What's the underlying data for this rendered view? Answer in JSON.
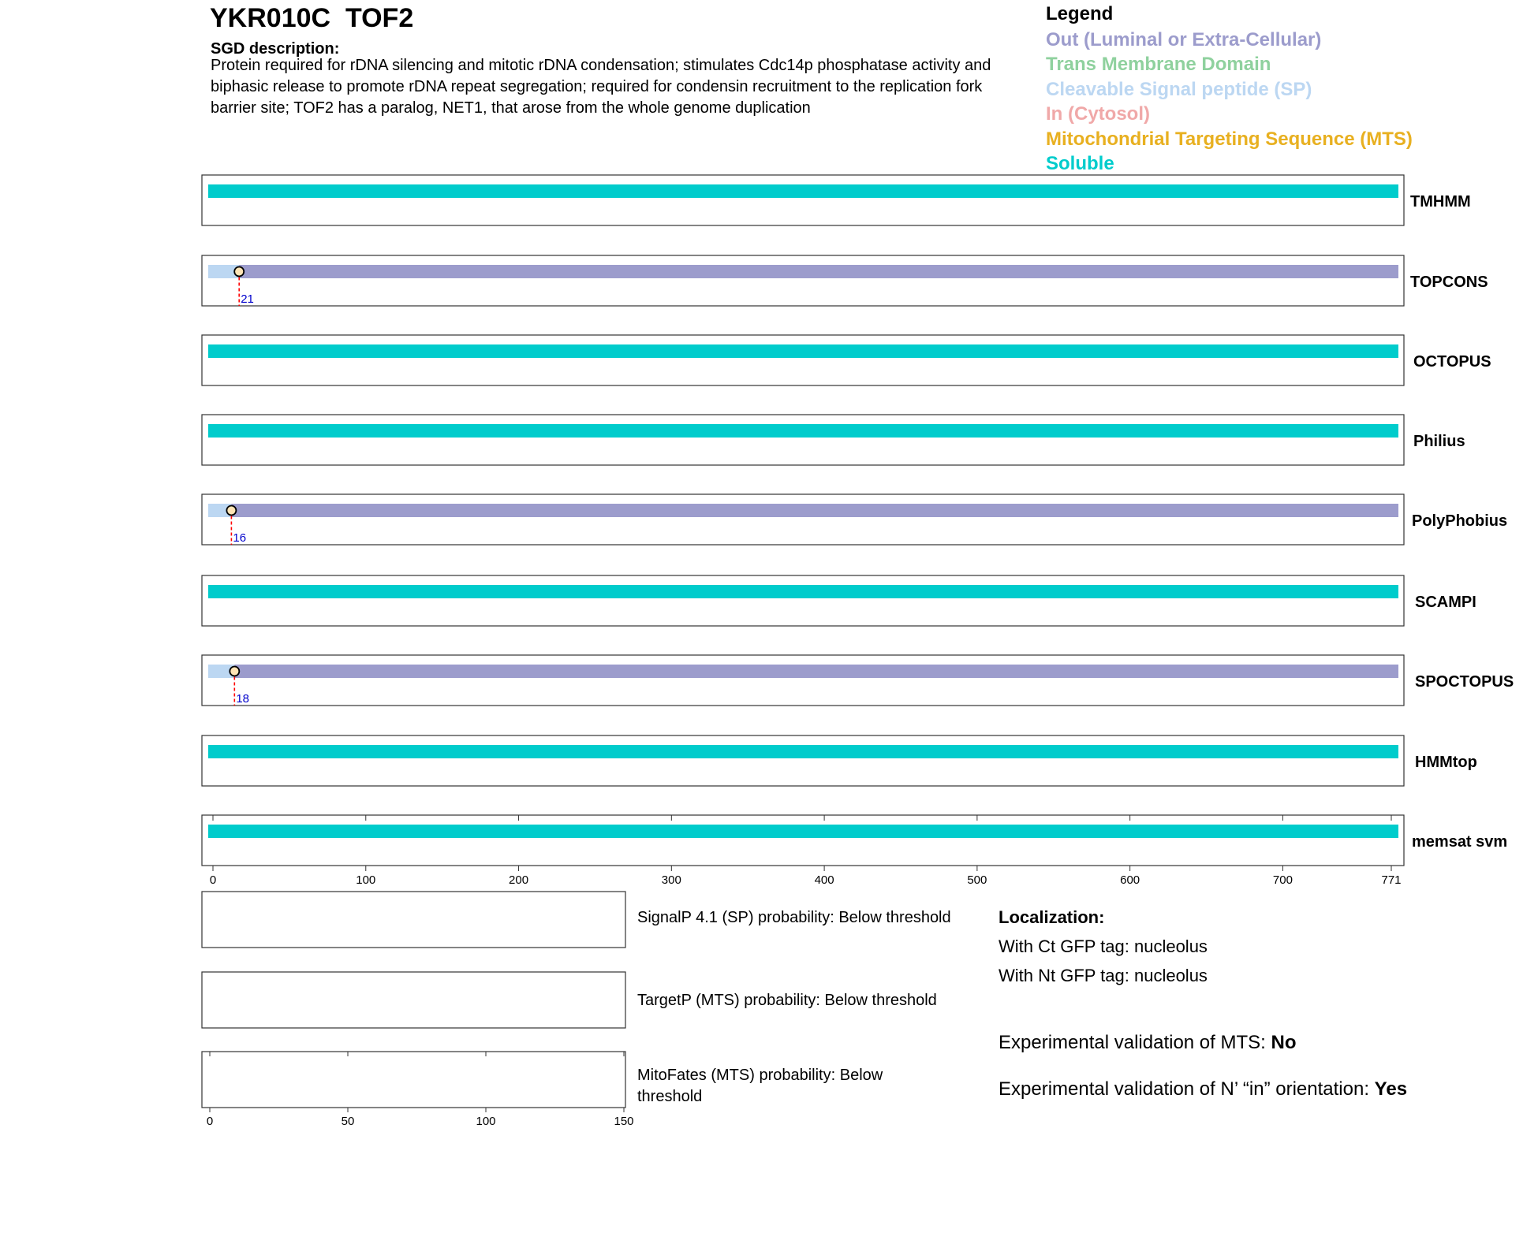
{
  "header": {
    "title": "YKR010C  TOF2",
    "desc_heading": "SGD description:",
    "desc_text": "Protein required for rDNA silencing and mitotic rDNA condensation; stimulates Cdc14p phosphatase activity and biphasic release to promote rDNA repeat segregation; required for condensin recruitment to the replication fork barrier site; TOF2 has a paralog, NET1, that arose from the whole genome duplication"
  },
  "legend": {
    "title": "Legend",
    "items": [
      {
        "label": "Out (Luminal or Extra-Cellular)",
        "color": "#9c9ccc"
      },
      {
        "label": "Trans Membrane Domain",
        "color": "#8fd19e"
      },
      {
        "label": "Cleavable Signal peptide (SP)",
        "color": "#bcd7f2"
      },
      {
        "label": "In (Cytosol)",
        "color": "#f0a8a8"
      },
      {
        "label": "Mitochondrial Targeting Sequence (MTS)",
        "color": "#e8b020"
      },
      {
        "label": "Soluble",
        "color": "#00cccc"
      }
    ]
  },
  "chart_data": {
    "type": "topology-tracks",
    "protein_length": 771,
    "x_ticks": [
      0,
      100,
      200,
      300,
      400,
      500,
      600,
      700,
      771
    ],
    "tracks": [
      {
        "name": "TMHMM",
        "segments": [
          {
            "start": 1,
            "end": 771,
            "type": "Soluble"
          }
        ]
      },
      {
        "name": "TOPCONS",
        "segments": [
          {
            "start": 1,
            "end": 21,
            "type": "Cleavable Signal peptide (SP)"
          },
          {
            "start": 21,
            "end": 771,
            "type": "Out (Luminal or Extra-Cellular)"
          }
        ],
        "cleavage_site": "21"
      },
      {
        "name": "OCTOPUS",
        "segments": [
          {
            "start": 1,
            "end": 771,
            "type": "Soluble"
          }
        ]
      },
      {
        "name": "Philius",
        "segments": [
          {
            "start": 1,
            "end": 771,
            "type": "Soluble"
          }
        ]
      },
      {
        "name": "PolyPhobius",
        "segments": [
          {
            "start": 1,
            "end": 16,
            "type": "Cleavable Signal peptide (SP)"
          },
          {
            "start": 16,
            "end": 771,
            "type": "Out (Luminal or Extra-Cellular)"
          }
        ],
        "cleavage_site": "16"
      },
      {
        "name": "SCAMPI",
        "segments": [
          {
            "start": 1,
            "end": 771,
            "type": "Soluble"
          }
        ]
      },
      {
        "name": "SPOCTOPUS",
        "segments": [
          {
            "start": 1,
            "end": 18,
            "type": "Cleavable Signal peptide (SP)"
          },
          {
            "start": 18,
            "end": 771,
            "type": "Out (Luminal or Extra-Cellular)"
          }
        ],
        "cleavage_site": "18"
      },
      {
        "name": "HMMtop",
        "segments": [
          {
            "start": 1,
            "end": 771,
            "type": "Soluble"
          }
        ]
      },
      {
        "name": "memsat svm",
        "segments": [
          {
            "start": 1,
            "end": 771,
            "type": "Soluble"
          }
        ]
      }
    ],
    "probability_panels": {
      "x_ticks": [
        0,
        50,
        100,
        150
      ],
      "xlim": [
        0,
        150
      ],
      "panels": [
        {
          "label": "SignalP 4.1 (SP) probability: Below threshold"
        },
        {
          "label": "TargetP (MTS) probability: Below threshold"
        },
        {
          "label": "MitoFates (MTS) probability: Below threshold"
        }
      ]
    }
  },
  "localization": {
    "heading": "Localization:",
    "ct": "With Ct GFP tag: nucleolus",
    "nt": "With Nt GFP tag: nucleolus"
  },
  "validation": {
    "mts_label": "Experimental validation of MTS: ",
    "mts_value": "No",
    "orient_label": "Experimental validation of N’ “in” orientation: ",
    "orient_value": "Yes"
  }
}
